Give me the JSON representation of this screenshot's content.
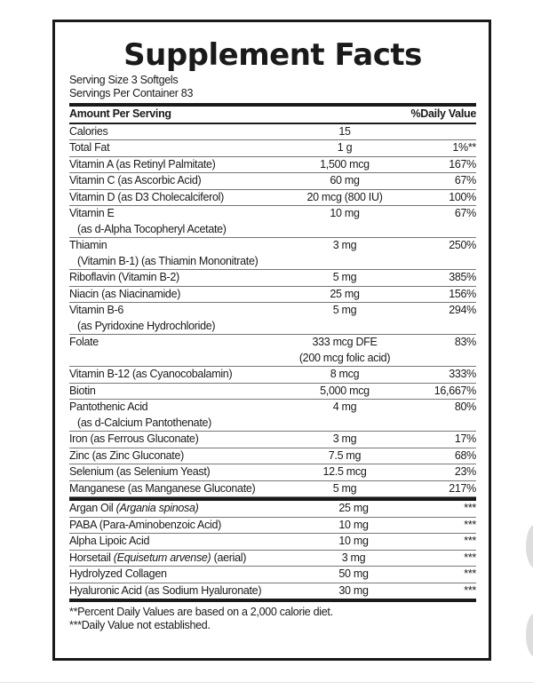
{
  "title": "Supplement Facts",
  "serving_size": "Serving Size 3 Softgels",
  "servings_per_container": "Servings Per Container 83",
  "header": {
    "name": "Amount Per Serving",
    "dv": "%Daily Value"
  },
  "rows_top": [
    {
      "name": "Calories",
      "amount": "15",
      "dv": ""
    },
    {
      "name": "Total Fat",
      "amount": "1 g",
      "dv": "1%**"
    },
    {
      "name": "Vitamin A (as Retinyl Palmitate)",
      "amount": "1,500 mcg",
      "dv": "167%"
    },
    {
      "name": "Vitamin C (as Ascorbic Acid)",
      "amount": "60 mg",
      "dv": "67%"
    },
    {
      "name": "Vitamin D (as D3 Cholecalciferol)",
      "amount": "20 mcg (800 IU)",
      "dv": "100%"
    },
    {
      "name": "Vitamin E",
      "sub": "(as d-Alpha Tocopheryl Acetate)",
      "amount": "10 mg",
      "dv": "67%"
    },
    {
      "name": "Thiamin",
      "sub": "(Vitamin B-1) (as Thiamin Mononitrate)",
      "amount": "3 mg",
      "dv": "250%"
    },
    {
      "name": "Riboflavin (Vitamin B-2)",
      "amount": "5 mg",
      "dv": "385%"
    },
    {
      "name": "Niacin (as Niacinamide)",
      "amount": "25 mg",
      "dv": "156%"
    },
    {
      "name": "Vitamin B-6",
      "sub": "(as Pyridoxine Hydrochloride)",
      "amount": "5 mg",
      "dv": "294%"
    },
    {
      "name": "Folate",
      "amount": "333 mcg DFE",
      "amount2": "(200 mcg folic acid)",
      "dv": "83%"
    },
    {
      "name": "Vitamin B-12 (as Cyanocobalamin)",
      "amount": "8 mcg",
      "dv": "333%"
    },
    {
      "name": "Biotin",
      "amount": "5,000 mcg",
      "dv": "16,667%"
    },
    {
      "name": "Pantothenic Acid",
      "sub": "(as d-Calcium Pantothenate)",
      "amount": "4 mg",
      "dv": "80%"
    },
    {
      "name": "Iron (as Ferrous Gluconate)",
      "amount": "3 mg",
      "dv": "17%"
    },
    {
      "name": "Zinc (as Zinc Gluconate)",
      "amount": "7.5 mg",
      "dv": "68%"
    },
    {
      "name": "Selenium (as Selenium Yeast)",
      "amount": "12.5 mcg",
      "dv": "23%"
    },
    {
      "name": "Manganese (as Manganese Gluconate)",
      "amount": "5 mg",
      "dv": "217%"
    }
  ],
  "rows_bottom": [
    {
      "name": "Argan Oil ",
      "italic": "(Argania spinosa)",
      "after": "",
      "amount": "25 mg",
      "dv": "***"
    },
    {
      "name": "PABA (Para-Aminobenzoic Acid)",
      "italic": "",
      "after": "",
      "amount": "10 mg",
      "dv": "***"
    },
    {
      "name": "Alpha Lipoic Acid",
      "italic": "",
      "after": "",
      "amount": "10 mg",
      "dv": "***"
    },
    {
      "name": "Horsetail ",
      "italic": "(Equisetum arvense)",
      "after": " (aerial)",
      "amount": "3 mg",
      "dv": "***"
    },
    {
      "name": "Hydrolyzed Collagen",
      "italic": "",
      "after": "",
      "amount": "50 mg",
      "dv": "***"
    },
    {
      "name": "Hyaluronic Acid (as Sodium Hyaluronate)",
      "italic": "",
      "after": "",
      "amount": "30 mg",
      "dv": "***"
    }
  ],
  "footnotes": [
    "**Percent Daily Values are based on a 2,000 calorie diet.",
    "***Daily Value not established."
  ]
}
